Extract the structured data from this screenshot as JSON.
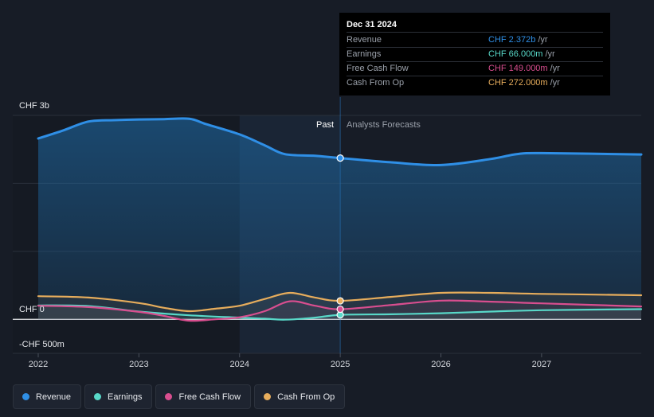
{
  "chart_data": {
    "type": "line",
    "title": "",
    "y_labels": {
      "top": "CHF 3b",
      "zero": "CHF 0",
      "bottom": "-CHF 500m"
    },
    "ylim_millions": [
      -500,
      3000
    ],
    "xlim_years": [
      2021.8,
      2027.99
    ],
    "x_ticks": [
      {
        "value": 2022,
        "label": "2022"
      },
      {
        "value": 2023,
        "label": "2023"
      },
      {
        "value": 2024,
        "label": "2024"
      },
      {
        "value": 2025,
        "label": "2025"
      },
      {
        "value": 2026,
        "label": "2026"
      },
      {
        "value": 2027,
        "label": "2027"
      }
    ],
    "past_label": "Past",
    "forecast_label": "Analysts Forecasts",
    "divider_year": 2025.0,
    "highlight_start_year": 2024.0,
    "series": [
      {
        "name": "Revenue",
        "color": "#2f8fe6",
        "points": [
          [
            2022.0,
            2660
          ],
          [
            2022.25,
            2780
          ],
          [
            2022.5,
            2910
          ],
          [
            2022.75,
            2930
          ],
          [
            2023.0,
            2940
          ],
          [
            2023.25,
            2945
          ],
          [
            2023.5,
            2950
          ],
          [
            2023.67,
            2870
          ],
          [
            2024.0,
            2720
          ],
          [
            2024.25,
            2560
          ],
          [
            2024.45,
            2430
          ],
          [
            2024.75,
            2405
          ],
          [
            2025.0,
            2372
          ],
          [
            2025.5,
            2310
          ],
          [
            2026.0,
            2270
          ],
          [
            2026.5,
            2360
          ],
          [
            2026.75,
            2430
          ],
          [
            2027.0,
            2445
          ],
          [
            2027.99,
            2425
          ]
        ]
      },
      {
        "name": "Earnings",
        "color": "#58d8c8",
        "points": [
          [
            2022.0,
            205
          ],
          [
            2022.5,
            195
          ],
          [
            2023.0,
            115
          ],
          [
            2023.5,
            60
          ],
          [
            2024.0,
            25
          ],
          [
            2024.25,
            10
          ],
          [
            2024.45,
            -5
          ],
          [
            2024.75,
            25
          ],
          [
            2025.0,
            66
          ],
          [
            2025.5,
            75
          ],
          [
            2026.0,
            90
          ],
          [
            2026.5,
            115
          ],
          [
            2027.0,
            135
          ],
          [
            2027.99,
            150
          ]
        ]
      },
      {
        "name": "Free Cash Flow",
        "color": "#d94e8f",
        "points": [
          [
            2022.0,
            200
          ],
          [
            2022.5,
            180
          ],
          [
            2023.0,
            110
          ],
          [
            2023.25,
            50
          ],
          [
            2023.5,
            -20
          ],
          [
            2023.75,
            0
          ],
          [
            2024.0,
            30
          ],
          [
            2024.25,
            120
          ],
          [
            2024.5,
            265
          ],
          [
            2024.75,
            200
          ],
          [
            2025.0,
            149
          ],
          [
            2025.5,
            210
          ],
          [
            2026.0,
            275
          ],
          [
            2026.5,
            260
          ],
          [
            2027.0,
            235
          ],
          [
            2027.99,
            190
          ]
        ]
      },
      {
        "name": "Cash From Op",
        "color": "#e7ad5c",
        "points": [
          [
            2022.0,
            340
          ],
          [
            2022.5,
            320
          ],
          [
            2023.0,
            240
          ],
          [
            2023.25,
            170
          ],
          [
            2023.5,
            120
          ],
          [
            2023.75,
            155
          ],
          [
            2024.0,
            200
          ],
          [
            2024.25,
            300
          ],
          [
            2024.5,
            390
          ],
          [
            2024.75,
            320
          ],
          [
            2025.0,
            272
          ],
          [
            2025.5,
            330
          ],
          [
            2026.0,
            390
          ],
          [
            2026.5,
            390
          ],
          [
            2027.0,
            375
          ],
          [
            2027.99,
            355
          ]
        ]
      }
    ]
  },
  "tooltip": {
    "date": "Dec 31 2024",
    "rows": [
      {
        "name": "Revenue",
        "value": "CHF 2.372b",
        "unit": "/yr",
        "color": "#2f8fe6"
      },
      {
        "name": "Earnings",
        "value": "CHF 66.000m",
        "unit": "/yr",
        "color": "#58d8c8"
      },
      {
        "name": "Free Cash Flow",
        "value": "CHF 149.000m",
        "unit": "/yr",
        "color": "#d94e8f"
      },
      {
        "name": "Cash From Op",
        "value": "CHF 272.000m",
        "unit": "/yr",
        "color": "#e7ad5c"
      }
    ]
  },
  "legend": [
    {
      "label": "Revenue",
      "color": "#2f8fe6"
    },
    {
      "label": "Earnings",
      "color": "#58d8c8"
    },
    {
      "label": "Free Cash Flow",
      "color": "#d94e8f"
    },
    {
      "label": "Cash From Op",
      "color": "#e7ad5c"
    }
  ]
}
